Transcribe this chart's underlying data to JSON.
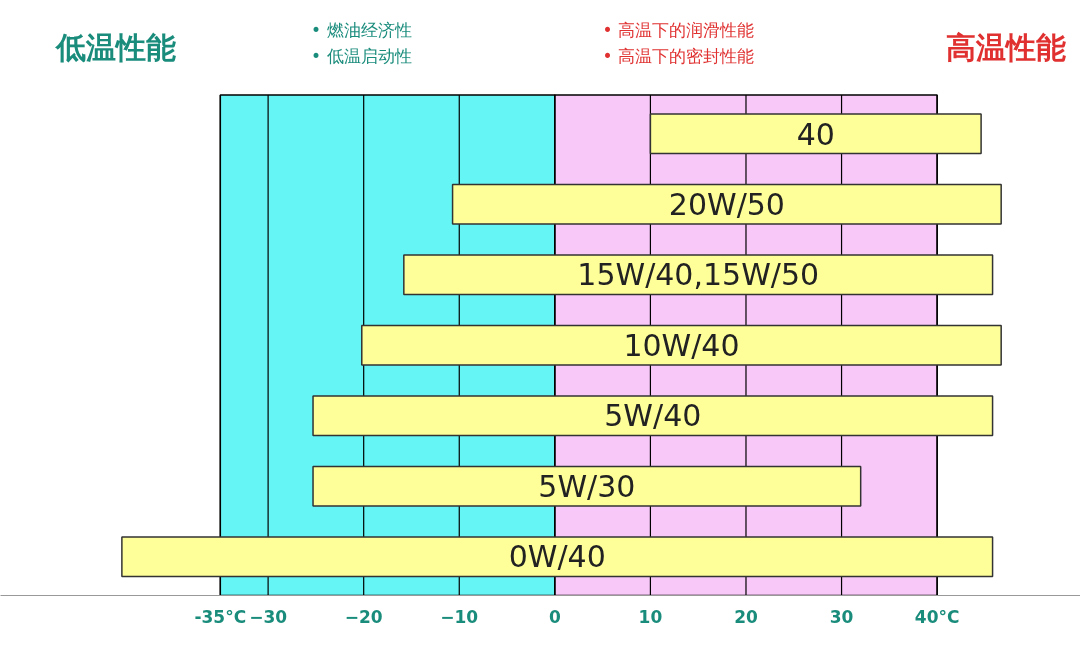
{
  "chart_data": {
    "type": "bar",
    "orientation": "horizontal",
    "categories": [
      "40",
      "20W/50",
      "15W/40,15W/50",
      "10W/40",
      "5W/40",
      "5W/30",
      "0W/40"
    ],
    "base": [
      10,
      -10.7,
      -15.8,
      -20.2,
      -25.3,
      -25.3,
      -45.3
    ],
    "values": [
      34.6,
      57.4,
      61.6,
      66.9,
      71.1,
      57.3,
      91.1
    ],
    "color": "#ffff99",
    "xlim": [
      -58,
      55
    ],
    "xticks": [
      {
        "value": -35,
        "label": "-35°C"
      },
      -30,
      -20,
      -10,
      0,
      10,
      20,
      30,
      {
        "value": 40,
        "label": "40°C"
      }
    ],
    "bands": [
      {
        "axis": "x",
        "from": -35,
        "to": 0,
        "color": "#66f5f5"
      },
      {
        "axis": "x",
        "from": 0,
        "to": 40,
        "color": "#f8c8f8"
      }
    ],
    "annotations": [
      "低温性能",
      "• 燃油经济性",
      "• 低温启动性",
      "• 高温下的润滑性能",
      "• 高温下的密封性能",
      "高温性能"
    ],
    "grid": "x",
    "tick_labels": "x"
  }
}
